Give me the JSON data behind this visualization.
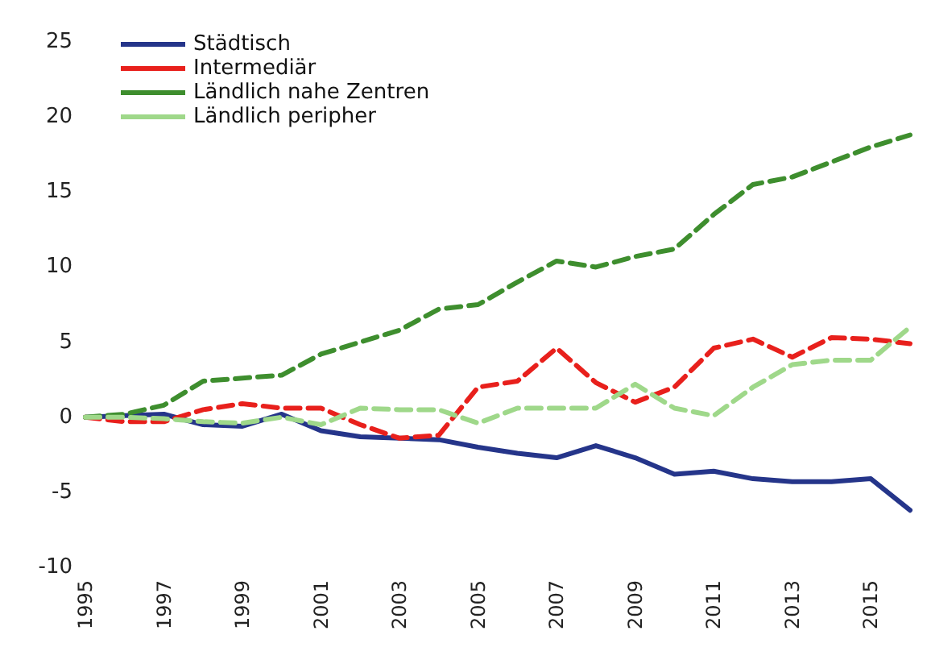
{
  "chart_data": {
    "type": "line",
    "categories": [
      "1995",
      null,
      "1997",
      null,
      "1999",
      null,
      "2001",
      null,
      "2003",
      null,
      "2005",
      null,
      "2007",
      null,
      "2009",
      null,
      "2011",
      null,
      "2013",
      null,
      "2015",
      null
    ],
    "series": [
      {
        "name": "Städtisch",
        "color": "#25358a",
        "line_style": "solid",
        "values": [
          0,
          0.1,
          0.2,
          -0.5,
          -0.6,
          0.2,
          -0.9,
          -1.3,
          -1.4,
          -1.5,
          -2,
          -2.4,
          -2.7,
          -1.9,
          -2.7,
          -3.8,
          -3.6,
          -4.1,
          -4.3,
          -4.3,
          -4.1,
          -6.2
        ]
      },
      {
        "name": "Intermediär",
        "color": "#e8201c",
        "line_style": "dashed",
        "values": [
          0,
          -0.3,
          -0.3,
          0.5,
          0.9,
          0.6,
          0.6,
          -0.5,
          -1.4,
          -1.2,
          2,
          2.4,
          4.6,
          2.3,
          1,
          2,
          4.6,
          5.2,
          4,
          5.3,
          5.2,
          4.9
        ]
      },
      {
        "name": "Ländlich nahe Zentren",
        "color": "#3e8e2e",
        "line_style": "dashed",
        "values": [
          0,
          0.2,
          0.8,
          2.4,
          2.6,
          2.8,
          4.2,
          5,
          5.8,
          7.2,
          7.5,
          9,
          10.4,
          10,
          10.7,
          11.2,
          13.5,
          15.5,
          16,
          17,
          18,
          18.8
        ]
      },
      {
        "name": "Ländlich peripher",
        "color": "#9fd88a",
        "line_style": "dashed",
        "values": [
          0,
          0,
          -0.1,
          -0.3,
          -0.4,
          0,
          -0.5,
          0.6,
          0.5,
          0.5,
          -0.4,
          0.6,
          0.6,
          0.6,
          2.2,
          0.6,
          0.1,
          2,
          3.5,
          3.8,
          3.8,
          6
        ]
      }
    ],
    "ylim": [
      -10,
      25
    ],
    "yticks": [
      -10,
      -5,
      0,
      5,
      10,
      15,
      20,
      25
    ],
    "grid": false,
    "legend": "top left",
    "marker": "none"
  }
}
